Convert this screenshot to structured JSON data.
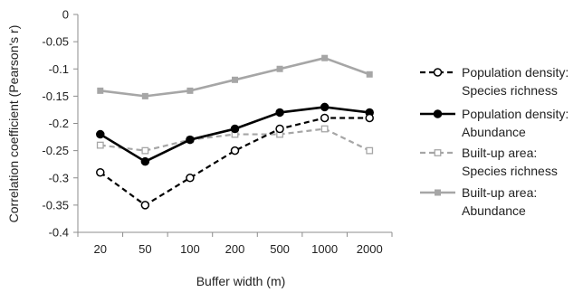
{
  "chart_data": {
    "type": "line",
    "xlabel": "Buffer width (m)",
    "ylabel": "Correlation coefficient (Pearson's r)",
    "categories": [
      "20",
      "50",
      "100",
      "200",
      "500",
      "1000",
      "2000"
    ],
    "ylim": [
      -0.4,
      0
    ],
    "yticks": [
      "0",
      "-0.05",
      "-0.1",
      "-0.15",
      "-0.2",
      "-0.25",
      "-0.3",
      "-0.35",
      "-0.4"
    ],
    "ytick_values": [
      0,
      -0.05,
      -0.1,
      -0.15,
      -0.2,
      -0.25,
      -0.3,
      -0.35,
      -0.4
    ],
    "grid": false,
    "legend_placement": "right",
    "series": [
      {
        "name": "Population density: Species richness",
        "legend_lines": [
          "Population density:",
          "Species richness"
        ],
        "values": [
          -0.29,
          -0.35,
          -0.3,
          -0.25,
          -0.21,
          -0.19,
          -0.19
        ],
        "color": "#000000",
        "dash": true,
        "marker": "circle-open"
      },
      {
        "name": "Population density: Abundance",
        "legend_lines": [
          "Population density:",
          "Abundance"
        ],
        "values": [
          -0.22,
          -0.27,
          -0.23,
          -0.21,
          -0.18,
          -0.17,
          -0.18
        ],
        "color": "#000000",
        "dash": false,
        "marker": "circle-filled"
      },
      {
        "name": "Built-up area: Species richness",
        "legend_lines": [
          "Built-up area:",
          "Species richness"
        ],
        "values": [
          -0.24,
          -0.25,
          -0.23,
          -0.22,
          -0.22,
          -0.21,
          -0.25
        ],
        "color": "#a6a6a6",
        "dash": true,
        "marker": "square-open"
      },
      {
        "name": "Built-up area: Abundance",
        "legend_lines": [
          "Built-up area:",
          "Abundance"
        ],
        "values": [
          -0.14,
          -0.15,
          -0.14,
          -0.12,
          -0.1,
          -0.08,
          -0.11
        ],
        "color": "#a6a6a6",
        "dash": false,
        "marker": "square-filled"
      }
    ]
  }
}
